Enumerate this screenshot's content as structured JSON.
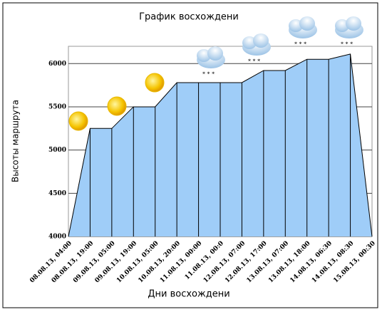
{
  "chart_data": {
    "type": "area",
    "title": "График восхождени",
    "x_label": "Дни восхождени",
    "y_label": "Высоты маршрута",
    "categories": [
      "08.08.13, 04:00",
      "08.08.13, 19:00",
      "09.08.13, 05:00",
      "09.08.13, 19:00",
      "10.08.13, 05:00",
      "10.08.13, 20:00",
      "11.08.13, 00:00",
      "11.08.13, 00:0",
      "12.08.13, 07:00",
      "12.08.13, 17:00",
      "13.08.13, 07:00",
      "13.08.13, 18:00",
      "14.08.13, 06:30",
      "14.08.13, 08:30",
      "15.08.13, 00:30"
    ],
    "values": [
      4000,
      5250,
      5250,
      5500,
      5500,
      5780,
      5780,
      5780,
      5780,
      5920,
      5920,
      6050,
      6050,
      6110,
      4000
    ],
    "color": "#9fcdf8",
    "ylim": [
      4000,
      6200
    ],
    "yticks": [
      4000,
      4500,
      5000,
      5500,
      6000
    ],
    "grid": true
  }
}
